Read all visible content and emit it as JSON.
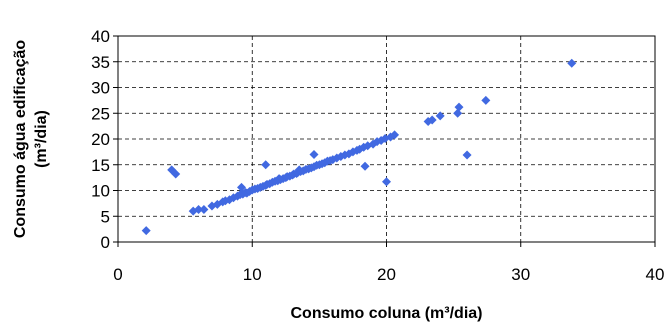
{
  "chart_data": {
    "type": "scatter",
    "title": "",
    "xlabel": "Consumo coluna (m³/dia)",
    "ylabel_line1": "Consumo água edificação",
    "ylabel_line2": "(m³/dia)",
    "xlim": [
      0,
      40
    ],
    "ylim": [
      0,
      40
    ],
    "xticks": [
      0,
      10,
      20,
      30,
      40
    ],
    "yticks": [
      0,
      5,
      10,
      15,
      20,
      25,
      30,
      35,
      40
    ],
    "grid": true,
    "legend": "none",
    "marker_color": "#4169E1",
    "series": [
      {
        "x": [
          2.1,
          4.0,
          4.3,
          5.6,
          6.0,
          6.4,
          7.0,
          7.4,
          7.8,
          8.0,
          8.3,
          8.6,
          8.9,
          9.1,
          9.3,
          9.5,
          9.6,
          9.8,
          10.0,
          10.2,
          10.4,
          10.6,
          10.8,
          11.0,
          11.1,
          11.3,
          11.5,
          11.7,
          11.9,
          12.1,
          12.3,
          12.5,
          12.6,
          12.8,
          13.0,
          13.1,
          13.3,
          13.4,
          13.6,
          13.8,
          14.0,
          14.2,
          14.4,
          14.6,
          14.8,
          15.0,
          15.2,
          15.4,
          15.6,
          15.8,
          16.0,
          16.3,
          16.6,
          16.9,
          17.2,
          17.5,
          17.8,
          18.0,
          18.3,
          18.6,
          19.0,
          19.3,
          19.6,
          19.9,
          20.3,
          20.6,
          18.4,
          20.0,
          11.0,
          9.2,
          12.0,
          13.5,
          14.6,
          23.1,
          23.4,
          24.0,
          25.3,
          25.4,
          26.0,
          27.4,
          33.8
        ],
        "y": [
          2.2,
          14.0,
          13.2,
          6.0,
          6.3,
          6.3,
          7.0,
          7.3,
          7.8,
          8.0,
          8.2,
          8.6,
          8.9,
          9.2,
          9.3,
          9.6,
          9.5,
          9.8,
          10.1,
          10.3,
          10.4,
          10.6,
          10.8,
          11.0,
          11.2,
          11.3,
          11.6,
          11.8,
          11.9,
          12.1,
          12.3,
          12.5,
          12.7,
          12.8,
          13.0,
          13.2,
          13.3,
          13.5,
          13.7,
          13.8,
          14.1,
          14.2,
          14.4,
          14.6,
          14.9,
          15.0,
          15.2,
          15.4,
          15.7,
          15.8,
          16.0,
          16.3,
          16.6,
          16.9,
          17.1,
          17.5,
          17.8,
          18.0,
          18.4,
          18.7,
          19.0,
          19.5,
          19.7,
          20.1,
          20.4,
          20.8,
          14.7,
          11.7,
          15.0,
          10.6,
          12.3,
          14.0,
          17.0,
          23.4,
          23.7,
          24.5,
          25.0,
          26.2,
          16.9,
          27.5,
          34.7
        ]
      }
    ]
  }
}
